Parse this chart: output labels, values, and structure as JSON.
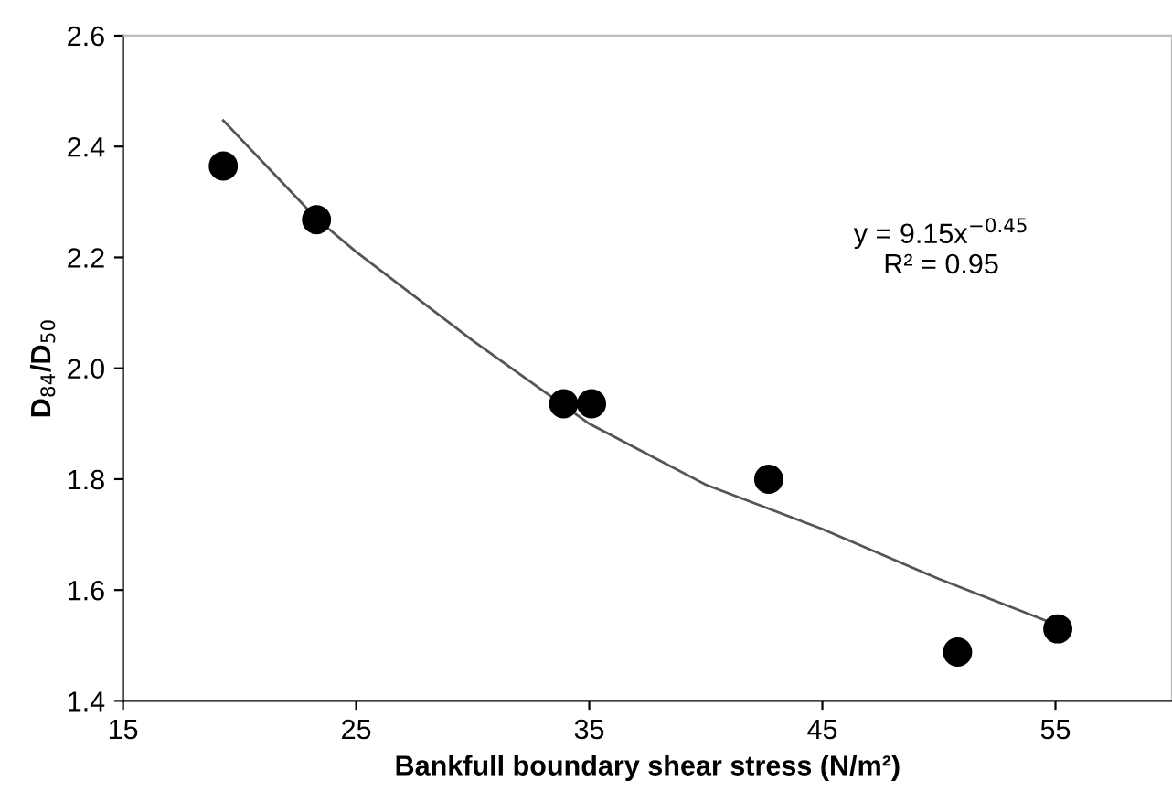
{
  "chart_data": {
    "type": "scatter",
    "xlabel": "Bankfull boundary shear stress (N/m²)",
    "ylabel": "D$_{84}$/D$_{50}$",
    "xlim": [
      15,
      60
    ],
    "ylim": [
      1.4,
      2.6
    ],
    "xticks": [
      15,
      25,
      35,
      45,
      55
    ],
    "yticks": [
      1.4,
      1.6,
      1.8,
      {
        "value": 2,
        "label": "2.0"
      },
      2.2,
      2.4,
      2.6
    ],
    "grid": false,
    "marker": "circle",
    "annotations": [
      "y = 9.15x$^{−0.45}$\nR² = 0.95"
    ],
    "series": [
      {
        "color": "#000000",
        "x": [
          19.3,
          23.3,
          33.9,
          35.1,
          42.7,
          50.8,
          55.1
        ],
        "values": [
          2.365,
          2.268,
          1.936,
          1.936,
          1.8,
          1.488,
          1.53
        ]
      },
      {
        "type": "line",
        "color": "#555555",
        "marker": "none",
        "line_style": "solid",
        "x": [
          19.3,
          23.3,
          25,
          30,
          35,
          40,
          45,
          50,
          55
        ],
        "values": [
          2.447,
          2.27,
          2.21,
          2.05,
          1.9,
          1.79,
          1.71,
          1.62,
          1.538
        ]
      }
    ]
  }
}
